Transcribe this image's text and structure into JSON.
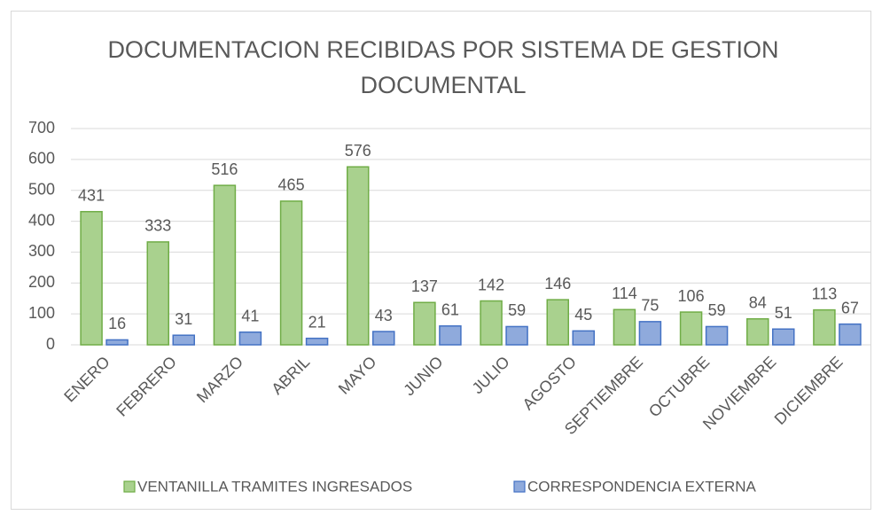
{
  "chart_data": {
    "type": "bar",
    "title": "DOCUMENTACION RECIBIDAS POR SISTEMA DE GESTION DOCUMENTAL",
    "categories": [
      "ENERO",
      "FEBRERO",
      "MARZO",
      "ABRIL",
      "MAYO",
      "JUNIO",
      "JULIO",
      "AGOSTO",
      "SEPTIEMBRE",
      "OCTUBRE",
      "NOVIEMBRE",
      "DICIEMBRE"
    ],
    "series": [
      {
        "name": "VENTANILLA TRAMITES INGRESADOS",
        "color": "#a9d18e",
        "border": "#70ad47",
        "values": [
          431,
          333,
          516,
          465,
          576,
          137,
          142,
          146,
          114,
          106,
          84,
          113
        ]
      },
      {
        "name": "CORRESPONDENCIA EXTERNA",
        "color": "#8faadc",
        "border": "#4472c4",
        "values": [
          16,
          31,
          41,
          21,
          43,
          61,
          59,
          45,
          75,
          59,
          51,
          67
        ]
      }
    ],
    "ylim": [
      0,
      700
    ],
    "yticks": [
      0,
      100,
      200,
      300,
      400,
      500,
      600,
      700
    ],
    "grid": true,
    "legend": "bottom"
  }
}
